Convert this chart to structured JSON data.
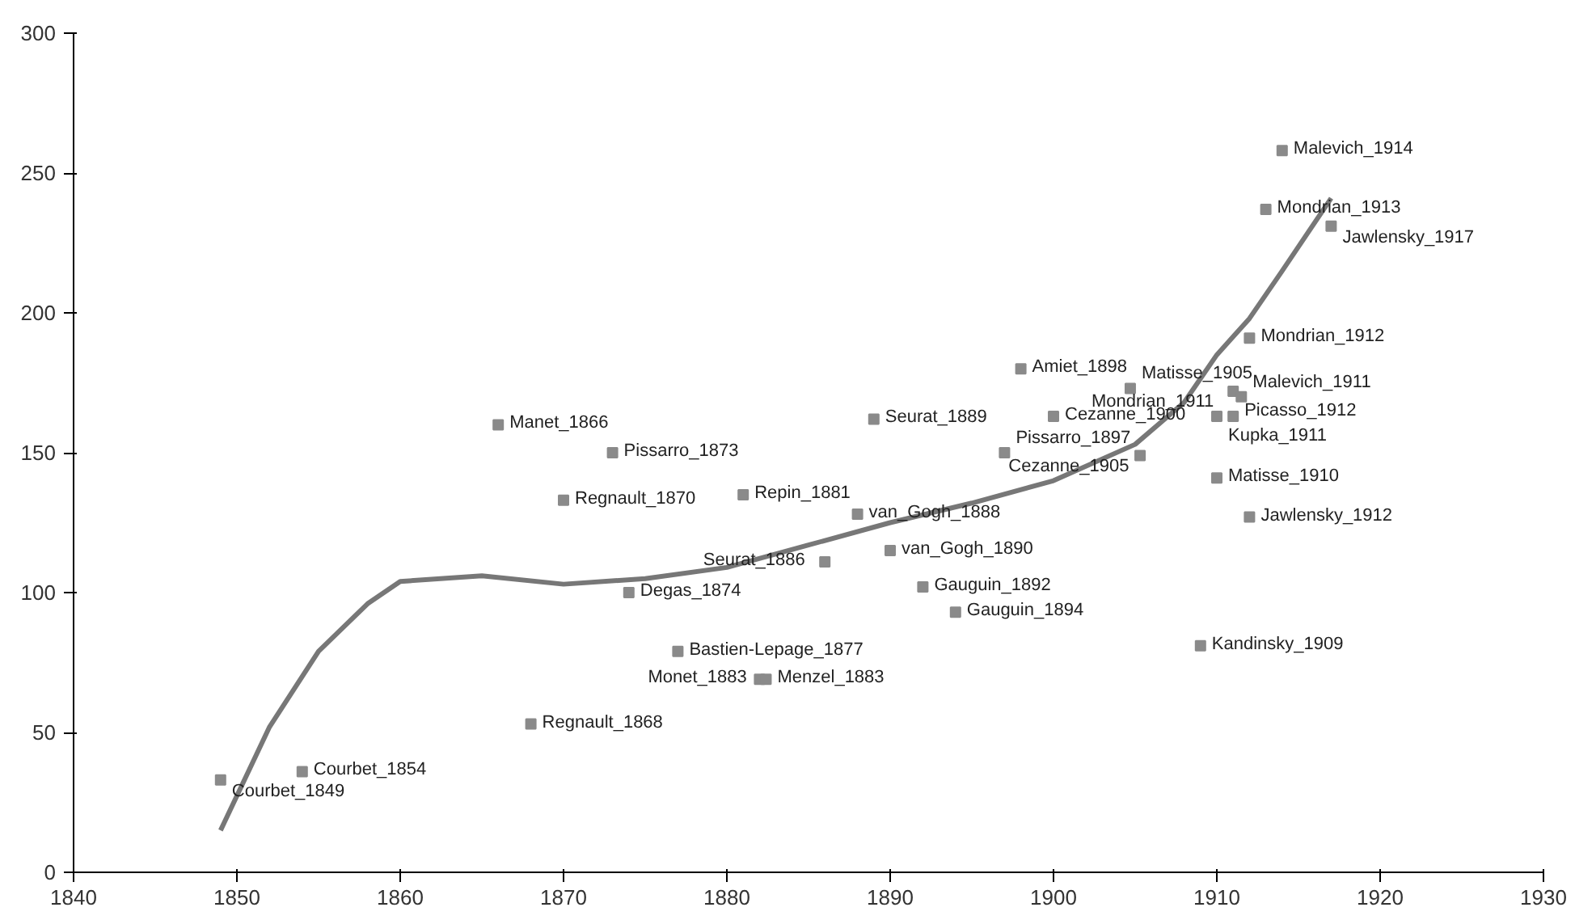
{
  "chart_data": {
    "type": "scatter",
    "xlim": [
      1840,
      1930
    ],
    "ylim": [
      0,
      300
    ],
    "xticks": [
      1840,
      1850,
      1860,
      1870,
      1880,
      1890,
      1900,
      1910,
      1920,
      1930
    ],
    "yticks": [
      0,
      50,
      100,
      150,
      200,
      250,
      300
    ],
    "grid": false,
    "marker": "square",
    "series": [
      {
        "color": "#8a8a8a",
        "x": [
          1849,
          1854,
          1868,
          1882,
          1882.4,
          1877,
          1874,
          1866,
          1873,
          1870,
          1881,
          1888,
          1886,
          1890,
          1892,
          1894,
          1889,
          1897,
          1900,
          1898,
          1904.7,
          1911,
          1911.5,
          1910,
          1911,
          1905.3,
          1910,
          1912,
          1909,
          1912,
          1914,
          1913,
          1917
        ],
        "values": [
          33,
          36,
          53,
          69,
          69,
          79,
          100,
          160,
          150,
          133,
          135,
          128,
          111,
          115,
          102,
          93,
          162,
          150,
          163,
          180,
          173,
          172,
          170,
          163,
          163,
          149,
          141,
          127,
          81,
          191,
          258,
          237,
          231
        ]
      },
      {
        "type": "line",
        "color": "#777777",
        "marker": "none",
        "line_style": "solid",
        "x": [
          1849,
          1852,
          1855,
          1858,
          1860,
          1865,
          1870,
          1875,
          1880,
          1885,
          1890,
          1895,
          1900,
          1905,
          1908,
          1910,
          1912,
          1914,
          1917
        ],
        "values": [
          15,
          52,
          79,
          96,
          104,
          106,
          103,
          105,
          109,
          117,
          125,
          132,
          140,
          153,
          168,
          185,
          198,
          215,
          241
        ]
      }
    ],
    "annotations": [
      {
        "text": "Courbet_1849",
        "x": 1849,
        "y": 33
      },
      {
        "text": "Courbet_1854",
        "x": 1854,
        "y": 36
      },
      {
        "text": "Regnault_1868",
        "x": 1868,
        "y": 53
      },
      {
        "text": "Monet_1883",
        "x": 1882,
        "y": 69
      },
      {
        "text": "Menzel_1883",
        "x": 1882.4,
        "y": 69
      },
      {
        "text": "Bastien-Lepage_1877",
        "x": 1877,
        "y": 79
      },
      {
        "text": "Degas_1874",
        "x": 1874,
        "y": 100
      },
      {
        "text": "Manet_1866",
        "x": 1866,
        "y": 160
      },
      {
        "text": "Pissarro_1873",
        "x": 1873,
        "y": 150
      },
      {
        "text": "Regnault_1870",
        "x": 1870,
        "y": 133
      },
      {
        "text": "Repin_1881",
        "x": 1881,
        "y": 135
      },
      {
        "text": "van_Gogh_1888",
        "x": 1888,
        "y": 128
      },
      {
        "text": "Seurat_1886",
        "x": 1886,
        "y": 111
      },
      {
        "text": "van_Gogh_1890",
        "x": 1890,
        "y": 115
      },
      {
        "text": "Gauguin_1892",
        "x": 1892,
        "y": 102
      },
      {
        "text": "Gauguin_1894",
        "x": 1894,
        "y": 93
      },
      {
        "text": "Seurat_1889",
        "x": 1889,
        "y": 162
      },
      {
        "text": "Pissarro_1897",
        "x": 1897,
        "y": 150
      },
      {
        "text": "Cezanne_1900",
        "x": 1900,
        "y": 163
      },
      {
        "text": "Amiet_1898",
        "x": 1898,
        "y": 180
      },
      {
        "text": "Matisse_1905",
        "x": 1904.7,
        "y": 173
      },
      {
        "text": "Picasso_1912",
        "x": 1911,
        "y": 172
      },
      {
        "text": "Malevich_1911",
        "x": 1911.5,
        "y": 170
      },
      {
        "text": "Kupka_1911",
        "x": 1910,
        "y": 163
      },
      {
        "text": "Mondrian_1911",
        "x": 1911,
        "y": 163
      },
      {
        "text": "Cezanne_1905",
        "x": 1905.3,
        "y": 149
      },
      {
        "text": "Matisse_1910",
        "x": 1910,
        "y": 141
      },
      {
        "text": "Jawlensky_1912",
        "x": 1912,
        "y": 127
      },
      {
        "text": "Kandinsky_1909",
        "x": 1909,
        "y": 81
      },
      {
        "text": "Mondrian_1912",
        "x": 1912,
        "y": 191
      },
      {
        "text": "Malevich_1914",
        "x": 1914,
        "y": 258
      },
      {
        "text": "Mondrian_1913",
        "x": 1913,
        "y": 237
      },
      {
        "text": "Jawlensky_1917",
        "x": 1917,
        "y": 231
      }
    ]
  }
}
